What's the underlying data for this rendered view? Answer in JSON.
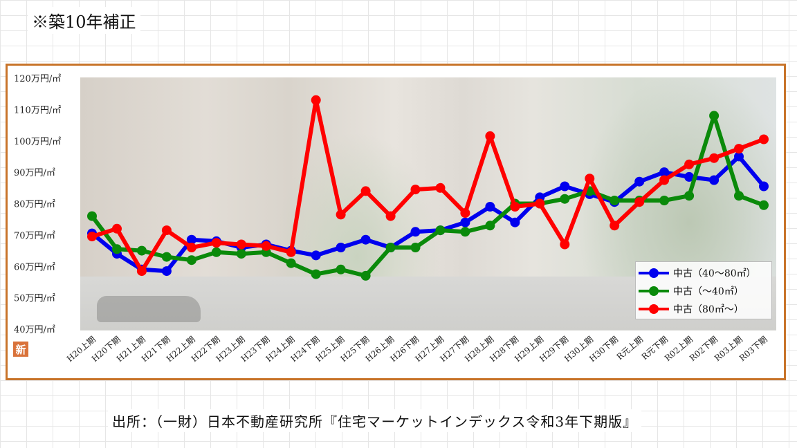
{
  "note": "※築10年補正",
  "badge": "新",
  "source": "出所：（一財）日本不動産研究所『住宅マーケットインデックス令和3年下期版』",
  "colors": {
    "frame": "#c8742a",
    "blue": "#0000ee",
    "green": "#0a8a0a",
    "red": "#ff0000"
  },
  "chart_data": {
    "type": "line",
    "title": "",
    "xlabel": "",
    "ylabel": "",
    "ylim": [
      40,
      120
    ],
    "yticks": [
      {
        "value": 40,
        "label": "40万円/㎡"
      },
      {
        "value": 50,
        "label": "50万円/㎡"
      },
      {
        "value": 60,
        "label": "60万円/㎡"
      },
      {
        "value": 70,
        "label": "70万円/㎡"
      },
      {
        "value": 80,
        "label": "80万円/㎡"
      },
      {
        "value": 90,
        "label": "90万円/㎡"
      },
      {
        "value": 100,
        "label": "100万円/㎡"
      },
      {
        "value": 110,
        "label": "110万円/㎡"
      },
      {
        "value": 120,
        "label": "120万円/㎡"
      }
    ],
    "categories": [
      "H20上期",
      "H20下期",
      "H21上期",
      "H21下期",
      "H22上期",
      "H22下期",
      "H23上期",
      "H23下期",
      "H24上期",
      "H24下期",
      "H25上期",
      "H25下期",
      "H26上期",
      "H26下期",
      "H27上期",
      "H27下期",
      "H28上期",
      "H28下期",
      "H29上期",
      "H29下期",
      "H30上期",
      "H30下期",
      "R元上期",
      "R元下期",
      "R02上期",
      "R02下期",
      "R03上期",
      "R03下期"
    ],
    "legend_position": "bottom-right",
    "series": [
      {
        "name": "中古（40～80㎡）",
        "color": "#0000ee",
        "values": [
          70.5,
          64,
          59,
          58.5,
          68.5,
          68,
          66,
          67,
          65,
          63.5,
          66,
          68.5,
          66,
          71,
          71.5,
          74,
          79,
          74,
          82,
          85.5,
          83,
          80.5,
          87,
          90,
          88.5,
          87.5,
          95,
          85.5
        ]
      },
      {
        "name": "中古（～40㎡）",
        "color": "#0a8a0a",
        "values": [
          76,
          65.5,
          65,
          63,
          62,
          64.5,
          64,
          64.5,
          61,
          57.5,
          59,
          57,
          66,
          66,
          71.5,
          71,
          73,
          80,
          80,
          81.5,
          84,
          81,
          81,
          81,
          82.5,
          108,
          82.5,
          79.5
        ]
      },
      {
        "name": "中古（80㎡～）",
        "color": "#ff0000",
        "values": [
          69.5,
          72,
          58.5,
          71.5,
          66,
          67.5,
          67,
          66.5,
          64.5,
          113,
          76.5,
          84,
          76,
          84.5,
          85,
          77,
          101.5,
          79,
          80,
          67,
          88,
          73,
          80.5,
          87.5,
          92.5,
          94.5,
          97.5,
          100.5
        ]
      }
    ]
  }
}
